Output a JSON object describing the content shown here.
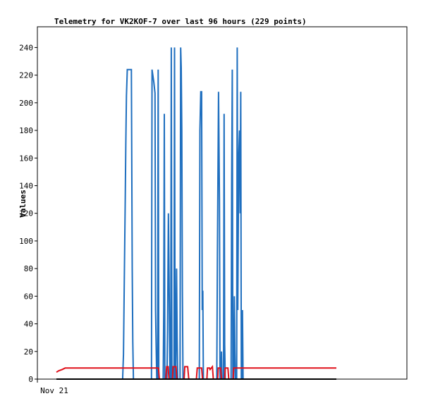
{
  "chart_data": {
    "type": "line",
    "title": "Telemetry for VK2KOF-7 over last 96 hours (229 points)",
    "xlabel": "",
    "ylabel": "Values",
    "x_tick_labels": [
      "Nov 21"
    ],
    "ylim": [
      0,
      255
    ],
    "yticks": [
      0,
      20,
      40,
      60,
      80,
      100,
      120,
      140,
      160,
      180,
      200,
      220,
      240
    ],
    "xlim": [
      0,
      96
    ],
    "grid": false,
    "legend": "none",
    "series": [
      {
        "color": "#1f6fbf",
        "points": [
          [
            0,
            0
          ],
          [
            22.7,
            0
          ],
          [
            23.0,
            18
          ],
          [
            23.2,
            55
          ],
          [
            23.4,
            95
          ],
          [
            23.6,
            130
          ],
          [
            23.8,
            170
          ],
          [
            24.0,
            205
          ],
          [
            24.3,
            224
          ],
          [
            25.7,
            224
          ],
          [
            26.0,
            80
          ],
          [
            26.2,
            27
          ],
          [
            26.4,
            0
          ],
          [
            32.6,
            0
          ],
          [
            32.8,
            224
          ],
          [
            33.4,
            215
          ],
          [
            33.8,
            207
          ],
          [
            34.0,
            50
          ],
          [
            34.2,
            25
          ],
          [
            34.4,
            0
          ],
          [
            34.7,
            0
          ],
          [
            34.9,
            224
          ],
          [
            35.1,
            0
          ],
          [
            36.6,
            0
          ],
          [
            36.8,
            50
          ],
          [
            37.0,
            192
          ],
          [
            37.2,
            0
          ],
          [
            37.9,
            0
          ],
          [
            38.1,
            35
          ],
          [
            38.4,
            120
          ],
          [
            38.7,
            60
          ],
          [
            38.9,
            0
          ],
          [
            39.2,
            0
          ],
          [
            39.4,
            240
          ],
          [
            39.6,
            0
          ],
          [
            40.3,
            0
          ],
          [
            40.5,
            240
          ],
          [
            40.7,
            0
          ],
          [
            40.9,
            0
          ],
          [
            41.2,
            80
          ],
          [
            41.4,
            30
          ],
          [
            41.6,
            0
          ],
          [
            42.4,
            0
          ],
          [
            42.6,
            240
          ],
          [
            42.8,
            225
          ],
          [
            43.0,
            180
          ],
          [
            43.2,
            65
          ],
          [
            43.4,
            0
          ],
          [
            49.0,
            0
          ],
          [
            49.2,
            180
          ],
          [
            49.5,
            208
          ],
          [
            49.8,
            208
          ],
          [
            50.0,
            50
          ],
          [
            50.2,
            64
          ],
          [
            50.4,
            0
          ],
          [
            55.0,
            0
          ],
          [
            55.2,
            90
          ],
          [
            55.6,
            208
          ],
          [
            55.9,
            130
          ],
          [
            56.1,
            0
          ],
          [
            56.4,
            0
          ],
          [
            56.6,
            20
          ],
          [
            56.8,
            0
          ],
          [
            57.3,
            0
          ],
          [
            57.5,
            192
          ],
          [
            57.7,
            25
          ],
          [
            57.9,
            0
          ],
          [
            59.9,
            0
          ],
          [
            60.1,
            140
          ],
          [
            60.3,
            224
          ],
          [
            60.5,
            0
          ],
          [
            60.8,
            0
          ],
          [
            61.0,
            60
          ],
          [
            61.2,
            20
          ],
          [
            61.4,
            0
          ],
          [
            61.8,
            0
          ],
          [
            62.0,
            240
          ],
          [
            62.2,
            50
          ],
          [
            62.5,
            160
          ],
          [
            62.8,
            180
          ],
          [
            63.0,
            120
          ],
          [
            63.2,
            208
          ],
          [
            63.4,
            0
          ],
          [
            63.6,
            0
          ],
          [
            63.8,
            50
          ],
          [
            64.0,
            0
          ],
          [
            96,
            0
          ]
        ]
      },
      {
        "color": "#e0101a",
        "points": [
          [
            0,
            5
          ],
          [
            0.8,
            6
          ],
          [
            2.0,
            7
          ],
          [
            3.0,
            8
          ],
          [
            35.0,
            8
          ],
          [
            35.3,
            0
          ],
          [
            37.5,
            0
          ],
          [
            37.8,
            9
          ],
          [
            38.3,
            9
          ],
          [
            38.6,
            0
          ],
          [
            39.8,
            0
          ],
          [
            40.0,
            9
          ],
          [
            41.0,
            9
          ],
          [
            41.3,
            0
          ],
          [
            43.8,
            0
          ],
          [
            44.0,
            9
          ],
          [
            45.0,
            9
          ],
          [
            45.4,
            0
          ],
          [
            48.0,
            0
          ],
          [
            48.3,
            8
          ],
          [
            49.8,
            8
          ],
          [
            50.1,
            0
          ],
          [
            51.6,
            0
          ],
          [
            51.8,
            8
          ],
          [
            52.5,
            8
          ],
          [
            52.7,
            7
          ],
          [
            53.5,
            9
          ],
          [
            53.8,
            0
          ],
          [
            55.3,
            0
          ],
          [
            55.5,
            8
          ],
          [
            56.3,
            8
          ],
          [
            56.6,
            0
          ],
          [
            57.7,
            0
          ],
          [
            57.9,
            8
          ],
          [
            58.8,
            8
          ],
          [
            59.1,
            0
          ],
          [
            60.6,
            0
          ],
          [
            60.8,
            8
          ],
          [
            96,
            8
          ]
        ]
      },
      {
        "color": "#000000",
        "points": [
          [
            0,
            0
          ],
          [
            96,
            0
          ]
        ]
      }
    ]
  }
}
